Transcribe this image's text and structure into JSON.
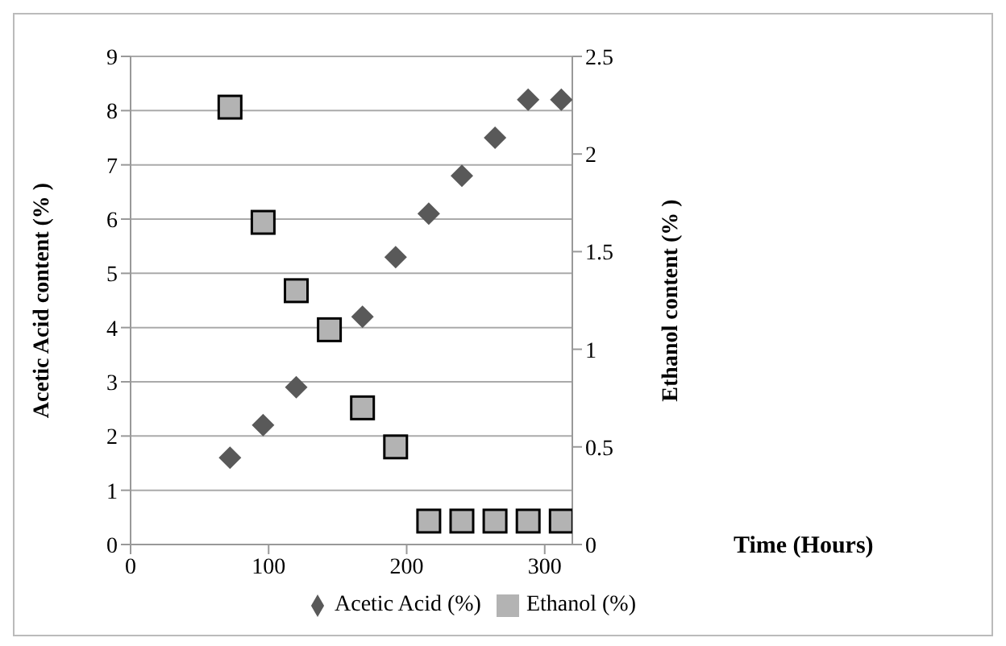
{
  "chart_data": {
    "type": "scatter",
    "xlabel": "Time (Hours)",
    "ylabel": "Acetic Acid content (% )",
    "y2label": "Ethanol content (% )",
    "xlim": [
      0,
      320
    ],
    "xticks": [
      0,
      100,
      200,
      300
    ],
    "ylim": [
      0,
      9
    ],
    "yticks": [
      0,
      1,
      2,
      3,
      4,
      5,
      6,
      7,
      8,
      9
    ],
    "y2lim": [
      0,
      2.5
    ],
    "y2ticks": [
      0,
      0.5,
      1,
      1.5,
      2,
      2.5
    ],
    "grid": "y",
    "legend": "bottom",
    "series": [
      {
        "name": "Acetic Acid (%)",
        "color": "#595959",
        "marker": "diamond",
        "x": [
          72,
          96,
          120,
          144,
          168,
          192,
          216,
          240,
          264,
          288,
          312
        ],
        "values": [
          1.6,
          2.2,
          2.9,
          null,
          4.2,
          5.3,
          6.1,
          6.8,
          7.5,
          8.2,
          8.2
        ]
      },
      {
        "name": "Ethanol (%)",
        "color": "#b3b3b3",
        "marker": "square",
        "axis": "y2",
        "x": [
          72,
          96,
          120,
          144,
          168,
          192,
          216,
          240,
          264,
          288,
          312
        ],
        "values": [
          2.24,
          1.65,
          1.3,
          1.1,
          0.7,
          0.5,
          0.12,
          0.12,
          0.12,
          0.12,
          0.12
        ]
      }
    ]
  }
}
